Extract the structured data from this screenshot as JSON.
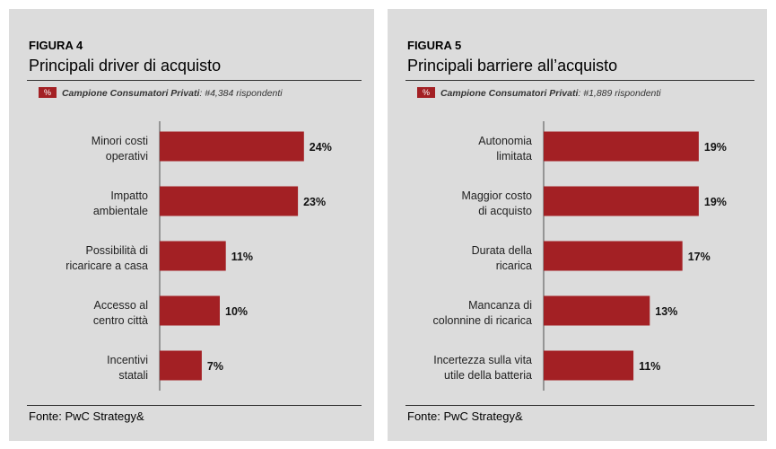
{
  "colors": {
    "bar": "#a32024",
    "panel": "#dcdcdc",
    "axis": "#666666"
  },
  "figures": [
    {
      "label": "FIGURA 4",
      "title": "Principali driver di acquisto",
      "subtitle": {
        "badge": "%",
        "sample": "Campione Consumatori Privati",
        "count": ": #4,384 rispondenti"
      },
      "source": "Fonte: PwC Strategy&"
    },
    {
      "label": "FIGURA 5",
      "title": "Principali barriere all’acquisto",
      "subtitle": {
        "badge": "%",
        "sample": "Campione Consumatori Privati",
        "count": ": #1,889 rispondenti"
      },
      "source": "Fonte: PwC Strategy&"
    }
  ],
  "chart_data": [
    {
      "type": "bar",
      "orientation": "horizontal",
      "title": "Principali driver di acquisto",
      "categories": [
        [
          "Minori costi",
          "operativi"
        ],
        [
          "Impatto",
          "ambientale"
        ],
        [
          "Possibilità di",
          "ricaricare a casa"
        ],
        [
          "Accesso al",
          "centro città"
        ],
        [
          "Incentivi",
          "statali"
        ]
      ],
      "values": [
        24,
        23,
        11,
        10,
        7
      ],
      "value_labels": [
        "24%",
        "23%",
        "11%",
        "10%",
        "7%"
      ],
      "unit": "%"
    },
    {
      "type": "bar",
      "orientation": "horizontal",
      "title": "Principali barriere all’acquisto",
      "categories": [
        [
          "Autonomia",
          "limitata"
        ],
        [
          "Maggior costo",
          "di acquisto"
        ],
        [
          "Durata della",
          "ricarica"
        ],
        [
          "Mancanza di",
          "colonnine di ricarica"
        ],
        [
          "Incertezza  sulla vita",
          "utile della batteria"
        ]
      ],
      "values": [
        19,
        19,
        17,
        13,
        11
      ],
      "value_labels": [
        "19%",
        "19%",
        "17%",
        "13%",
        "11%"
      ],
      "unit": "%"
    }
  ]
}
